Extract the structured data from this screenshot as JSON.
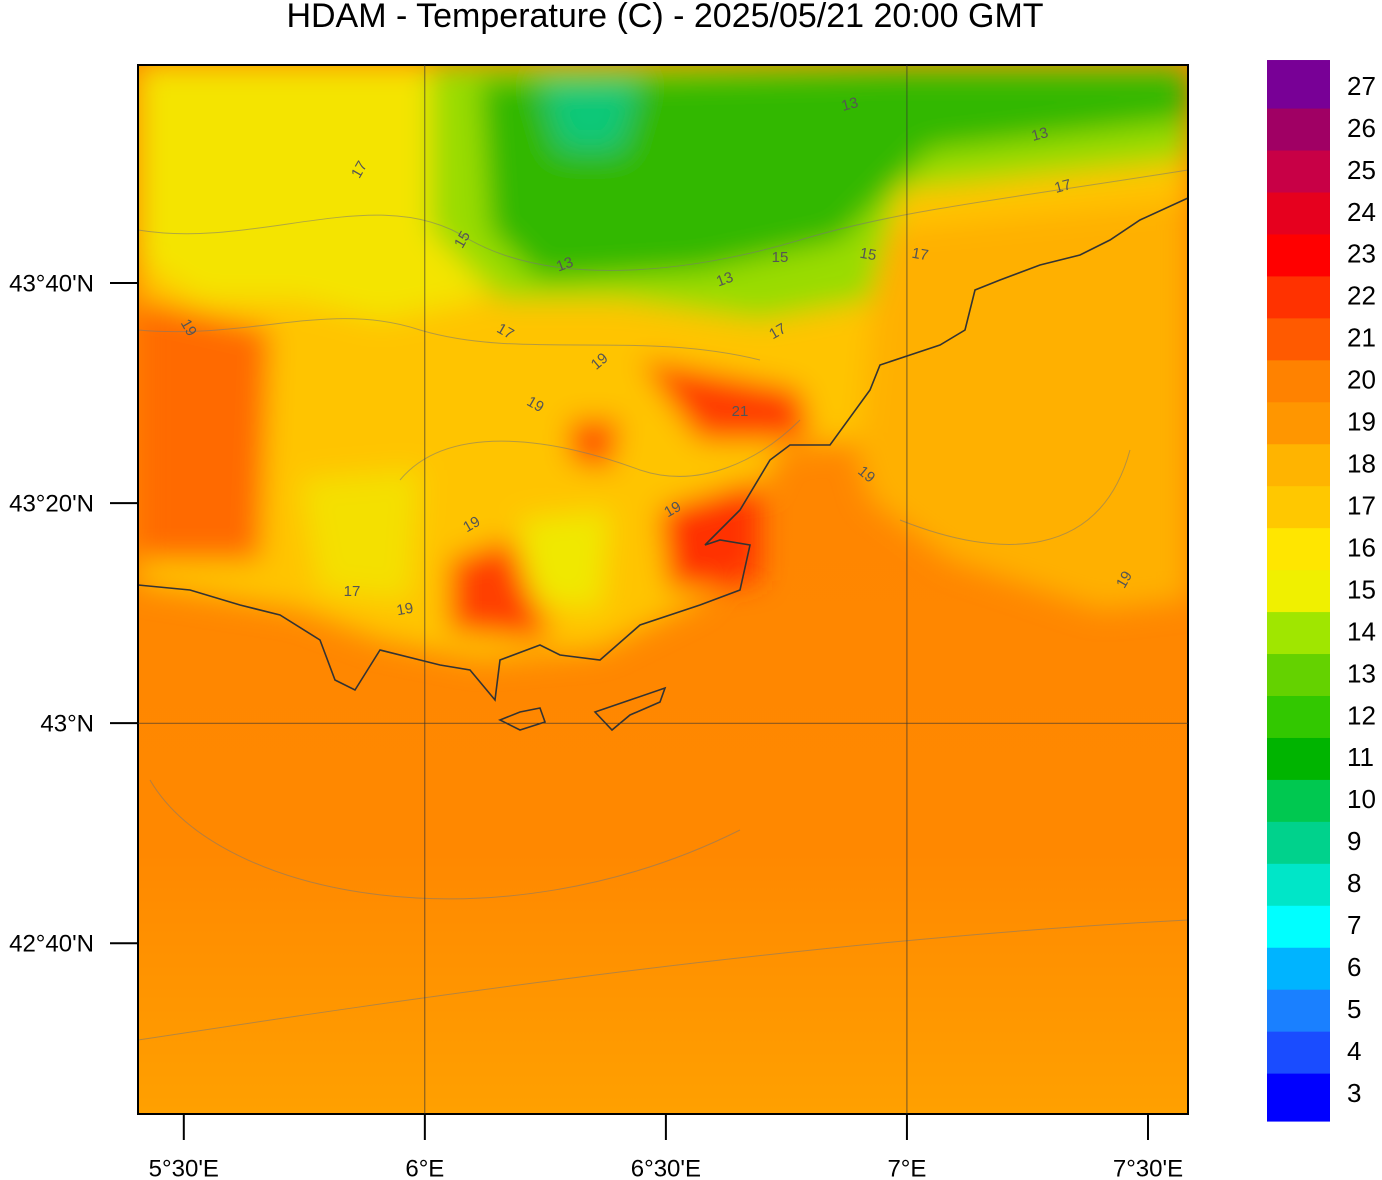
{
  "chart_data": {
    "type": "map",
    "title": "HDAM - Temperature (C)  -  2025/05/21  20:00 GMT",
    "xlim": [
      5.405,
      7.583
    ],
    "ylim": [
      42.408,
      43.997
    ],
    "xticks": [
      {
        "value": 5.5,
        "label": "5°30'E"
      },
      {
        "value": 6,
        "label": "6°E"
      },
      {
        "value": 6.5,
        "label": "6°30'E"
      },
      {
        "value": 7,
        "label": "7°E"
      },
      {
        "value": 7.5,
        "label": "7°30'E"
      }
    ],
    "yticks": [
      {
        "value": 43.6667,
        "label": "43°40'N"
      },
      {
        "value": 43.3333,
        "label": "43°20'N"
      },
      {
        "value": 43,
        "label": "43°N"
      },
      {
        "value": 42.6667,
        "label": "42°40'N"
      }
    ],
    "grid": true,
    "colorbar": {
      "ticks": [
        3,
        4,
        5,
        6,
        7,
        8,
        9,
        10,
        11,
        12,
        13,
        14,
        15,
        16,
        17,
        18,
        19,
        20,
        21,
        22,
        23,
        24,
        25,
        26,
        27
      ],
      "colors": [
        "#0000ff",
        "#1a4cff",
        "#1a80ff",
        "#00b4ff",
        "#00ffff",
        "#00e6c8",
        "#00d28c",
        "#00c850",
        "#00b400",
        "#32c800",
        "#64d200",
        "#a0e600",
        "#f0f000",
        "#ffe600",
        "#ffc800",
        "#ffb400",
        "#ff9600",
        "#ff8200",
        "#ff5a00",
        "#ff3200",
        "#ff0000",
        "#e6001e",
        "#c80046",
        "#a00064",
        "#780096"
      ]
    },
    "contour_labels": [
      "17",
      "15",
      "13",
      "13",
      "15",
      "15",
      "17",
      "13",
      "13",
      "17",
      "19",
      "17",
      "17",
      "19",
      "19",
      "21",
      "19",
      "19",
      "19",
      "17",
      "19",
      "19"
    ]
  }
}
